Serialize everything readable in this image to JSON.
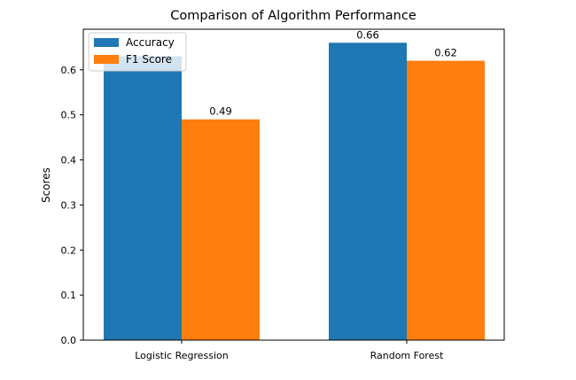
{
  "chart_data": {
    "type": "bar",
    "title": "Comparison of Algorithm Performance",
    "xlabel": "",
    "ylabel": "Scores",
    "categories": [
      "Logistic Regression",
      "Random Forest"
    ],
    "series": [
      {
        "name": "Accuracy",
        "values": [
          0.63,
          0.66
        ],
        "color": "#1f77b4"
      },
      {
        "name": "F1 Score",
        "values": [
          0.49,
          0.62
        ],
        "color": "#ff7f0e"
      }
    ],
    "data_labels": [
      {
        "series": "F1 Score",
        "category": "Logistic Regression",
        "text": "0.49"
      },
      {
        "series": "Accuracy",
        "category": "Random Forest",
        "text": "0.66"
      },
      {
        "series": "F1 Score",
        "category": "Random Forest",
        "text": "0.62"
      }
    ],
    "ylim": [
      0,
      0.69
    ],
    "yticks": [
      0.0,
      0.1,
      0.2,
      0.3,
      0.4,
      0.5,
      0.6
    ],
    "ytick_labels": [
      "0.0",
      "0.1",
      "0.2",
      "0.3",
      "0.4",
      "0.5",
      "0.6"
    ],
    "grid": false,
    "legend_position": "top-left"
  }
}
